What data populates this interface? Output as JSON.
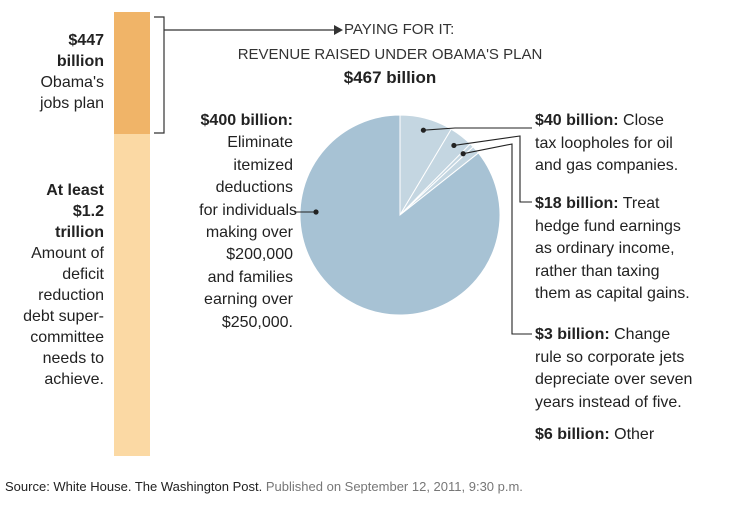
{
  "left_bar": {
    "top": {
      "amount": "$447 billion",
      "line1": "Obama's",
      "line2": "jobs plan",
      "value": 447
    },
    "bottom": {
      "amount_line1": "At least",
      "amount_line2": "$1.2",
      "amount_line3": "trillion",
      "desc": [
        "Amount of",
        "deficit",
        "reduction",
        "debt super-",
        "committee",
        "needs to",
        "achieve."
      ],
      "value": 1200
    }
  },
  "header": {
    "line1": "PAYING FOR IT:",
    "line2": "REVENUE RAISED UNDER OBAMA'S PLAN",
    "total": "$467 billion"
  },
  "chart_data": {
    "type": "pie",
    "title": "PAYING FOR IT: REVENUE RAISED UNDER OBAMA'S PLAN",
    "subtitle": "$467 billion",
    "colors": {
      "main": "#a7c2d4",
      "small": "#c4d6e1",
      "stroke": "#ffffff",
      "leader": "#222222"
    },
    "slices": [
      {
        "amount": "$400 billion:",
        "value": 400,
        "desc": [
          "Eliminate",
          "itemized",
          "deductions",
          "for individuals",
          "making over",
          "$200,000",
          "and families",
          "earning over",
          "$250,000."
        ]
      },
      {
        "amount": "$40 billion:",
        "value": 40,
        "desc_first": "Close",
        "desc": [
          "tax loopholes for oil",
          "and gas companies."
        ]
      },
      {
        "amount": "$18 billion:",
        "value": 18,
        "desc_first": "Treat",
        "desc": [
          "hedge fund earnings",
          "as ordinary income,",
          "rather than taxing",
          "them as capital gains."
        ]
      },
      {
        "amount": "$3 billion:",
        "value": 3,
        "desc_first": "Change",
        "desc": [
          "rule so corporate jets",
          "depreciate over seven",
          "years instead of five."
        ]
      },
      {
        "amount": "$6 billion:",
        "value": 6,
        "desc_first": "Other",
        "desc": []
      }
    ]
  },
  "source": {
    "text": "Source: White House. The Washington Post.",
    "published": "Published on September 12, 2011, 9:30 p.m."
  }
}
